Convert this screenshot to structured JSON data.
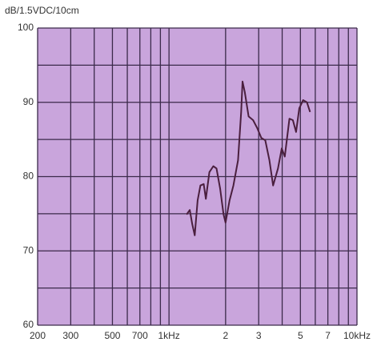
{
  "chart_data": {
    "type": "line",
    "title": "dB/1.5VDC/10cm",
    "x": [
      1240,
      1290,
      1330,
      1370,
      1420,
      1470,
      1530,
      1570,
      1640,
      1720,
      1790,
      1870,
      1950,
      2000,
      2100,
      2200,
      2330,
      2420,
      2460,
      2530,
      2650,
      2800,
      2950,
      3100,
      3250,
      3420,
      3580,
      3800,
      3980,
      4130,
      4370,
      4560,
      4740,
      4930,
      5170,
      5420,
      5630
    ],
    "values": [
      74.9,
      75.5,
      73.6,
      72.1,
      76.8,
      78.8,
      79,
      77,
      80.6,
      81.4,
      81.1,
      78.4,
      74.9,
      73.8,
      76.8,
      78.8,
      82.2,
      88.7,
      92.8,
      91.4,
      88.1,
      87.6,
      86.5,
      85.2,
      84.9,
      82.2,
      78.8,
      81.1,
      83.8,
      82.7,
      87.8,
      87.6,
      86,
      89.2,
      90.3,
      90,
      88.7
    ],
    "color": "#4a1f3e",
    "background": "#c9a5dc",
    "grid_color": "#3b2a4a",
    "xscale": "log",
    "xlim": [
      200,
      10000
    ],
    "ylim": [
      60,
      100
    ],
    "xticks": [
      200,
      300,
      500,
      700,
      {
        "value": 1000,
        "label": "1kHz"
      },
      {
        "value": 2000,
        "label": "2"
      },
      {
        "value": 3000,
        "label": "3"
      },
      {
        "value": 5000,
        "label": "5"
      },
      {
        "value": 7000,
        "label": "7"
      },
      {
        "value": 10000,
        "label": "10kHz"
      }
    ],
    "xminor": [
      400,
      600,
      800,
      900,
      4000,
      6000,
      8000,
      9000
    ],
    "yticks": [
      60,
      70,
      80,
      90,
      100
    ],
    "yminor": [
      65,
      75,
      85,
      95
    ],
    "grid": true
  }
}
